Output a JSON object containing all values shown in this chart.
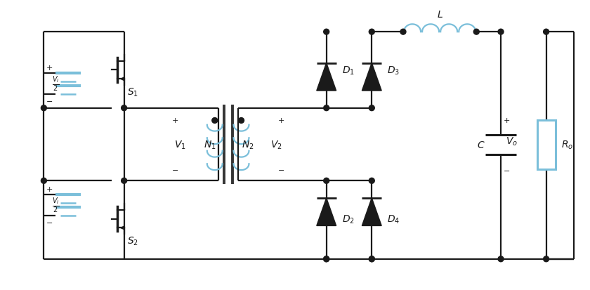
{
  "bg_color": "#ffffff",
  "line_color": "#1a1a1a",
  "blue_color": "#7bbfda",
  "fig_width": 8.4,
  "fig_height": 4.14
}
